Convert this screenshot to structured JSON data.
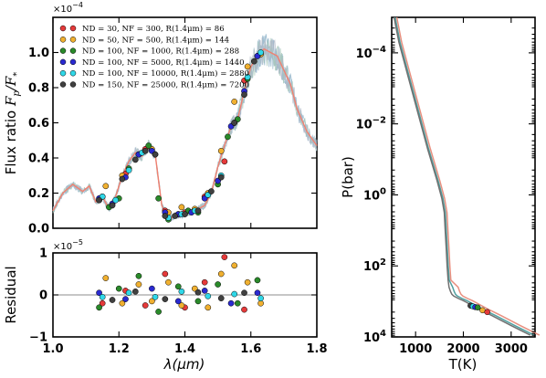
{
  "chart_data": [
    {
      "type": "scatter",
      "panel": "spectrum",
      "ylabel": "Flux ratio F_p/F_*",
      "y_multiplier": "×10^-4",
      "xlim": [
        1.0,
        1.8
      ],
      "ylim": [
        0.0,
        1.2
      ],
      "yticks": [
        "0.0",
        "0.2",
        "0.4",
        "0.6",
        "0.8",
        "1.0"
      ],
      "legend_position": "top-left",
      "model_curve": {
        "color": "#f08070",
        "x": [
          1.0,
          1.03,
          1.06,
          1.09,
          1.11,
          1.13,
          1.15,
          1.17,
          1.19,
          1.21,
          1.23,
          1.25,
          1.27,
          1.29,
          1.31,
          1.33,
          1.35,
          1.37,
          1.4,
          1.43,
          1.46,
          1.48,
          1.5,
          1.52,
          1.54,
          1.56,
          1.58,
          1.6,
          1.62,
          1.64,
          1.66,
          1.68,
          1.7,
          1.72,
          1.74,
          1.77,
          1.8
        ],
        "y": [
          0.1,
          0.2,
          0.25,
          0.21,
          0.24,
          0.15,
          0.18,
          0.11,
          0.18,
          0.3,
          0.38,
          0.43,
          0.41,
          0.47,
          0.42,
          0.13,
          0.05,
          0.07,
          0.08,
          0.1,
          0.13,
          0.2,
          0.35,
          0.47,
          0.58,
          0.62,
          0.78,
          0.92,
          0.98,
          1.02,
          1.0,
          0.98,
          0.9,
          0.82,
          0.68,
          0.55,
          0.47
        ]
      },
      "series": [
        {
          "name": "ND = 30, NF = 300, R(1.4μm) = 86",
          "color": "#e53a3a",
          "x": [
            1.15,
            1.22,
            1.28,
            1.34,
            1.4,
            1.46,
            1.52,
            1.58
          ],
          "y": [
            0.18,
            0.31,
            0.45,
            0.1,
            0.09,
            0.18,
            0.38,
            0.84
          ]
        },
        {
          "name": "ND = 50, NF = 500, R(1.4μm) = 144",
          "color": "#f0b030",
          "x": [
            1.16,
            1.21,
            1.26,
            1.3,
            1.35,
            1.39,
            1.43,
            1.47,
            1.51,
            1.55,
            1.59,
            1.63
          ],
          "y": [
            0.24,
            0.3,
            0.42,
            0.45,
            0.09,
            0.12,
            0.11,
            0.2,
            0.44,
            0.72,
            0.92,
            0.99
          ]
        },
        {
          "name": "ND = 100, NF = 1000, R(1.4μm) = 288",
          "color": "#2a8a2a",
          "x": [
            1.14,
            1.17,
            1.2,
            1.23,
            1.26,
            1.29,
            1.32,
            1.35,
            1.38,
            1.41,
            1.44,
            1.47,
            1.5,
            1.53,
            1.56,
            1.59,
            1.62
          ],
          "y": [
            0.16,
            0.12,
            0.17,
            0.34,
            0.42,
            0.47,
            0.17,
            0.05,
            0.08,
            0.1,
            0.09,
            0.19,
            0.25,
            0.52,
            0.62,
            0.85,
            0.98
          ]
        },
        {
          "name": "ND = 100, NF = 5000, R(1.4μm) = 1440",
          "color": "#2a2ad0",
          "x": [
            1.14,
            1.18,
            1.22,
            1.26,
            1.3,
            1.34,
            1.38,
            1.42,
            1.46,
            1.5,
            1.54,
            1.58,
            1.62
          ],
          "y": [
            0.17,
            0.14,
            0.29,
            0.42,
            0.44,
            0.09,
            0.08,
            0.09,
            0.17,
            0.27,
            0.58,
            0.78,
            0.98
          ]
        },
        {
          "name": "ND = 100, NF = 10000, R(1.4μm) = 2880",
          "color": "#30d8e8",
          "x": [
            1.15,
            1.19,
            1.23,
            1.27,
            1.31,
            1.35,
            1.39,
            1.43,
            1.47,
            1.51,
            1.55,
            1.59,
            1.63
          ],
          "y": [
            0.18,
            0.16,
            0.33,
            0.43,
            0.42,
            0.06,
            0.08,
            0.1,
            0.19,
            0.3,
            0.6,
            0.86,
            1.0
          ]
        },
        {
          "name": "ND = 150, NF = 25000, R(1.4μm) = 7200",
          "color": "#404040",
          "x": [
            1.14,
            1.18,
            1.21,
            1.25,
            1.28,
            1.31,
            1.34,
            1.37,
            1.4,
            1.44,
            1.48,
            1.51,
            1.55,
            1.58,
            1.61
          ],
          "y": [
            0.16,
            0.13,
            0.28,
            0.39,
            0.44,
            0.42,
            0.07,
            0.07,
            0.08,
            0.1,
            0.21,
            0.29,
            0.6,
            0.76,
            0.95
          ]
        }
      ]
    },
    {
      "type": "scatter",
      "panel": "residual",
      "xlabel": "λ(μm)",
      "ylabel": "Residual",
      "y_multiplier": "×10^-5",
      "xlim": [
        1.0,
        1.8
      ],
      "ylim": [
        -1,
        1
      ],
      "xticks": [
        "1.0",
        "1.2",
        "1.4",
        "1.6",
        "1.8"
      ],
      "yticks": [
        "−1",
        "0",
        "1"
      ],
      "series": [
        {
          "color": "#e53a3a",
          "x": [
            1.15,
            1.22,
            1.28,
            1.34,
            1.4,
            1.46,
            1.52,
            1.58
          ],
          "y": [
            -0.2,
            0.1,
            -0.25,
            0.5,
            -0.3,
            0.3,
            0.9,
            -0.35
          ]
        },
        {
          "color": "#f0b030",
          "x": [
            1.16,
            1.21,
            1.26,
            1.3,
            1.35,
            1.39,
            1.43,
            1.47,
            1.51,
            1.55,
            1.59,
            1.63
          ],
          "y": [
            0.4,
            -0.2,
            0.25,
            -0.15,
            0.3,
            -0.25,
            0.15,
            -0.3,
            0.5,
            0.7,
            0.3,
            -0.2
          ]
        },
        {
          "color": "#2a8a2a",
          "x": [
            1.14,
            1.2,
            1.26,
            1.32,
            1.38,
            1.44,
            1.5,
            1.56,
            1.62
          ],
          "y": [
            -0.3,
            0.15,
            0.45,
            -0.4,
            0.2,
            -0.15,
            0.25,
            -0.2,
            0.35
          ]
        },
        {
          "color": "#2a2ad0",
          "x": [
            1.14,
            1.22,
            1.3,
            1.38,
            1.46,
            1.54,
            1.62
          ],
          "y": [
            0.05,
            -0.1,
            0.15,
            -0.15,
            0.1,
            -0.2,
            0.05
          ]
        },
        {
          "color": "#30d8e8",
          "x": [
            1.15,
            1.23,
            1.31,
            1.39,
            1.47,
            1.55,
            1.63
          ],
          "y": [
            -0.05,
            0.05,
            -0.05,
            0.08,
            -0.03,
            0.02,
            -0.08
          ]
        },
        {
          "color": "#404040",
          "x": [
            1.18,
            1.25,
            1.34,
            1.44,
            1.51,
            1.58
          ],
          "y": [
            -0.12,
            0.08,
            -0.1,
            0.06,
            -0.08,
            0.05
          ]
        }
      ]
    },
    {
      "type": "line",
      "panel": "temperature-pressure",
      "xlabel": "T(K)",
      "ylabel": "P(bar)",
      "xlim": [
        500,
        3500
      ],
      "xticks": [
        "1000",
        "2000",
        "3000"
      ],
      "ylim_log10": [
        -5,
        4
      ],
      "y_inverted": true,
      "yticks": [
        "10^-4",
        "10^-2",
        "10^0",
        "10^2",
        "10^4"
      ],
      "profile": {
        "T": [
          550,
          650,
          850,
          1050,
          1250,
          1450,
          1550,
          1600,
          1620,
          1640,
          1660,
          1680,
          1700,
          1730,
          1760,
          1800,
          1900,
          2000,
          2100,
          2300,
          2600,
          3000,
          3400
        ],
        "logP": [
          -5.0,
          -4.3,
          -3.3,
          -2.3,
          -1.3,
          -0.4,
          0.1,
          0.5,
          1.0,
          1.5,
          2.0,
          2.4,
          2.6,
          2.72,
          2.8,
          2.85,
          2.92,
          2.98,
          3.05,
          3.2,
          3.4,
          3.68,
          3.95
        ],
        "colors": [
          "#e89080",
          "#50a0a0",
          "#707070"
        ]
      },
      "points": [
        {
          "color": "#404040",
          "T": 2150,
          "logP": 3.12
        },
        {
          "color": "#30d8e8",
          "T": 2200,
          "logP": 3.14
        },
        {
          "color": "#2a2ad0",
          "T": 2250,
          "logP": 3.16
        },
        {
          "color": "#2a8a2a",
          "T": 2300,
          "logP": 3.17
        },
        {
          "color": "#f0b030",
          "T": 2400,
          "logP": 3.25
        },
        {
          "color": "#e53a3a",
          "T": 2500,
          "logP": 3.3
        }
      ]
    }
  ]
}
